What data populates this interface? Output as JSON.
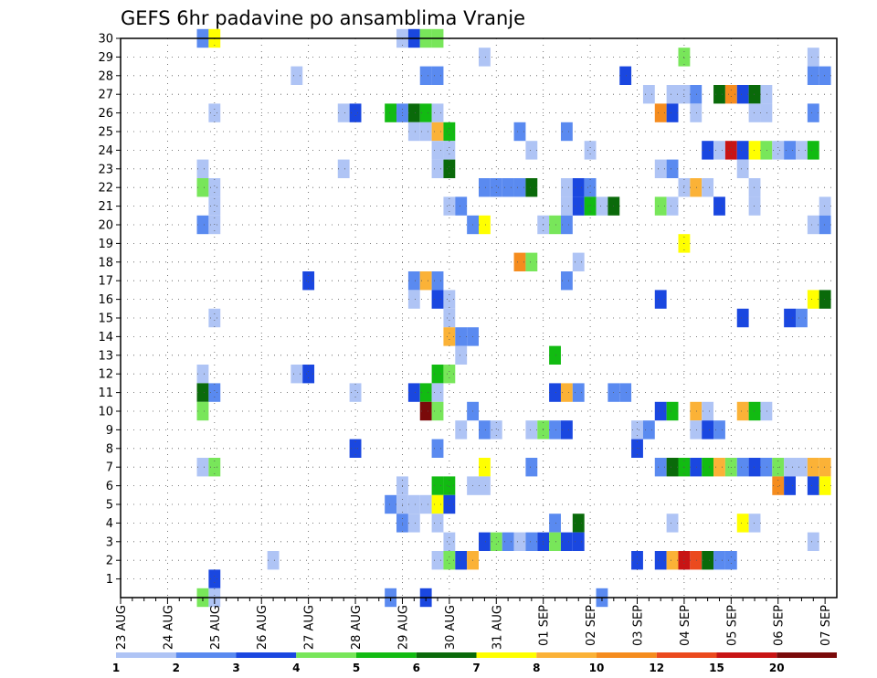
{
  "chart_data": {
    "type": "heatmap",
    "title": "GEFS 6hr padavine po ansamblima Vranje",
    "xlabel": "",
    "ylabel": "",
    "x_tick_labels": [
      "23 AUG",
      "24 AUG",
      "25 AUG",
      "26 AUG",
      "27 AUG",
      "28 AUG",
      "29 AUG",
      "30 AUG",
      "31 AUG",
      "01 SEP",
      "02 SEP",
      "03 SEP",
      "04 SEP",
      "05 SEP",
      "06 SEP",
      "07 SEP"
    ],
    "y_tick_labels": [
      "1",
      "2",
      "3",
      "4",
      "5",
      "6",
      "7",
      "8",
      "9",
      "10",
      "11",
      "12",
      "13",
      "14",
      "15",
      "16",
      "17",
      "18",
      "19",
      "20",
      "21",
      "22",
      "23",
      "24",
      "25",
      "26",
      "27",
      "28",
      "29",
      "30"
    ],
    "time_steps_6h": 61,
    "members_range": [
      0,
      30
    ],
    "grid": true,
    "legend_position": "bottom",
    "legend": {
      "labels": [
        "1",
        "2",
        "3",
        "4",
        "5",
        "6",
        "7",
        "8",
        "10",
        "12",
        "15",
        "20"
      ],
      "colors": [
        "#afc4f5",
        "#5a8af0",
        "#1a47e0",
        "#78e65a",
        "#12bb12",
        "#0a6a0a",
        "#ffff00",
        "#fbb237",
        "#f58c1e",
        "#eb4a1e",
        "#c81414",
        "#7a0a0a"
      ]
    },
    "class_colors": [
      "#afc4f5",
      "#5a8af0",
      "#1a47e0",
      "#78e65a",
      "#12bb12",
      "#0a6a0a",
      "#ffff00",
      "#fbb237",
      "#f58c1e",
      "#eb4a1e",
      "#c81414",
      "#7a0a0a"
    ],
    "cells": [
      [
        7,
        30,
        2
      ],
      [
        8,
        30,
        7
      ],
      [
        24,
        30,
        1
      ],
      [
        25,
        30,
        3
      ],
      [
        26,
        30,
        4
      ],
      [
        27,
        30,
        4
      ],
      [
        31,
        29,
        1
      ],
      [
        48,
        29,
        4
      ],
      [
        59,
        29,
        1
      ],
      [
        15,
        28,
        1
      ],
      [
        26,
        28,
        2
      ],
      [
        27,
        28,
        2
      ],
      [
        43,
        28,
        3
      ],
      [
        59,
        28,
        2
      ],
      [
        60,
        28,
        2
      ],
      [
        45,
        27,
        1
      ],
      [
        47,
        27,
        1
      ],
      [
        48,
        27,
        1
      ],
      [
        49,
        27,
        2
      ],
      [
        51,
        27,
        6
      ],
      [
        52,
        27,
        9
      ],
      [
        53,
        27,
        3
      ],
      [
        54,
        27,
        6
      ],
      [
        55,
        27,
        1
      ],
      [
        8,
        26,
        1
      ],
      [
        19,
        26,
        1
      ],
      [
        20,
        26,
        3
      ],
      [
        23,
        26,
        5
      ],
      [
        24,
        26,
        2
      ],
      [
        25,
        26,
        6
      ],
      [
        26,
        26,
        5
      ],
      [
        27,
        26,
        1
      ],
      [
        46,
        26,
        9
      ],
      [
        47,
        26,
        3
      ],
      [
        49,
        26,
        1
      ],
      [
        54,
        26,
        1
      ],
      [
        55,
        26,
        1
      ],
      [
        59,
        26,
        2
      ],
      [
        25,
        25,
        1
      ],
      [
        26,
        25,
        1
      ],
      [
        27,
        25,
        8
      ],
      [
        28,
        25,
        5
      ],
      [
        34,
        25,
        2
      ],
      [
        38,
        25,
        2
      ],
      [
        27,
        24,
        1
      ],
      [
        28,
        24,
        1
      ],
      [
        35,
        24,
        1
      ],
      [
        40,
        24,
        1
      ],
      [
        50,
        24,
        3
      ],
      [
        51,
        24,
        1
      ],
      [
        52,
        24,
        11
      ],
      [
        53,
        24,
        3
      ],
      [
        54,
        24,
        7
      ],
      [
        55,
        24,
        4
      ],
      [
        56,
        24,
        1
      ],
      [
        57,
        24,
        2
      ],
      [
        58,
        24,
        1
      ],
      [
        59,
        24,
        5
      ],
      [
        7,
        23,
        1
      ],
      [
        19,
        23,
        1
      ],
      [
        27,
        23,
        1
      ],
      [
        28,
        23,
        6
      ],
      [
        46,
        23,
        1
      ],
      [
        47,
        23,
        2
      ],
      [
        53,
        23,
        1
      ],
      [
        7,
        22,
        4
      ],
      [
        8,
        22,
        1
      ],
      [
        31,
        22,
        2
      ],
      [
        32,
        22,
        2
      ],
      [
        33,
        22,
        2
      ],
      [
        34,
        22,
        2
      ],
      [
        35,
        22,
        6
      ],
      [
        38,
        22,
        1
      ],
      [
        39,
        22,
        3
      ],
      [
        40,
        22,
        2
      ],
      [
        48,
        22,
        1
      ],
      [
        49,
        22,
        8
      ],
      [
        50,
        22,
        1
      ],
      [
        54,
        22,
        1
      ],
      [
        8,
        21,
        1
      ],
      [
        28,
        21,
        1
      ],
      [
        29,
        21,
        2
      ],
      [
        38,
        21,
        1
      ],
      [
        39,
        21,
        3
      ],
      [
        40,
        21,
        5
      ],
      [
        41,
        21,
        1
      ],
      [
        42,
        21,
        6
      ],
      [
        46,
        21,
        4
      ],
      [
        47,
        21,
        1
      ],
      [
        51,
        21,
        3
      ],
      [
        54,
        21,
        1
      ],
      [
        60,
        21,
        1
      ],
      [
        7,
        20,
        2
      ],
      [
        8,
        20,
        1
      ],
      [
        30,
        20,
        2
      ],
      [
        31,
        20,
        7
      ],
      [
        36,
        20,
        1
      ],
      [
        37,
        20,
        4
      ],
      [
        38,
        20,
        2
      ],
      [
        59,
        20,
        1
      ],
      [
        60,
        20,
        2
      ],
      [
        48,
        19,
        7
      ],
      [
        34,
        18,
        9
      ],
      [
        35,
        18,
        4
      ],
      [
        39,
        18,
        1
      ],
      [
        16,
        17,
        3
      ],
      [
        25,
        17,
        2
      ],
      [
        26,
        17,
        8
      ],
      [
        27,
        17,
        2
      ],
      [
        38,
        17,
        2
      ],
      [
        25,
        16,
        1
      ],
      [
        27,
        16,
        3
      ],
      [
        28,
        16,
        1
      ],
      [
        46,
        16,
        3
      ],
      [
        59,
        16,
        7
      ],
      [
        60,
        16,
        6
      ],
      [
        8,
        15,
        1
      ],
      [
        28,
        15,
        1
      ],
      [
        53,
        15,
        3
      ],
      [
        57,
        15,
        3
      ],
      [
        58,
        15,
        2
      ],
      [
        28,
        14,
        8
      ],
      [
        29,
        14,
        2
      ],
      [
        30,
        14,
        2
      ],
      [
        29,
        13,
        1
      ],
      [
        37,
        13,
        5
      ],
      [
        7,
        12,
        1
      ],
      [
        15,
        12,
        1
      ],
      [
        16,
        12,
        3
      ],
      [
        27,
        12,
        5
      ],
      [
        28,
        12,
        4
      ],
      [
        7,
        11,
        6
      ],
      [
        8,
        11,
        2
      ],
      [
        20,
        11,
        1
      ],
      [
        25,
        11,
        3
      ],
      [
        26,
        11,
        5
      ],
      [
        27,
        11,
        1
      ],
      [
        37,
        11,
        3
      ],
      [
        38,
        11,
        8
      ],
      [
        39,
        11,
        2
      ],
      [
        42,
        11,
        2
      ],
      [
        43,
        11,
        2
      ],
      [
        7,
        10,
        4
      ],
      [
        26,
        10,
        12
      ],
      [
        27,
        10,
        4
      ],
      [
        30,
        10,
        2
      ],
      [
        46,
        10,
        3
      ],
      [
        47,
        10,
        5
      ],
      [
        49,
        10,
        8
      ],
      [
        50,
        10,
        1
      ],
      [
        53,
        10,
        8
      ],
      [
        54,
        10,
        5
      ],
      [
        55,
        10,
        1
      ],
      [
        29,
        9,
        1
      ],
      [
        31,
        9,
        2
      ],
      [
        32,
        9,
        1
      ],
      [
        35,
        9,
        1
      ],
      [
        36,
        9,
        4
      ],
      [
        37,
        9,
        2
      ],
      [
        38,
        9,
        3
      ],
      [
        44,
        9,
        1
      ],
      [
        45,
        9,
        2
      ],
      [
        49,
        9,
        1
      ],
      [
        50,
        9,
        3
      ],
      [
        51,
        9,
        2
      ],
      [
        20,
        8,
        3
      ],
      [
        27,
        8,
        2
      ],
      [
        44,
        8,
        3
      ],
      [
        7,
        7,
        1
      ],
      [
        8,
        7,
        4
      ],
      [
        31,
        7,
        7
      ],
      [
        35,
        7,
        2
      ],
      [
        46,
        7,
        2
      ],
      [
        47,
        7,
        6
      ],
      [
        48,
        7,
        5
      ],
      [
        49,
        7,
        3
      ],
      [
        50,
        7,
        5
      ],
      [
        51,
        7,
        8
      ],
      [
        52,
        7,
        4
      ],
      [
        53,
        7,
        2
      ],
      [
        54,
        7,
        3
      ],
      [
        55,
        7,
        2
      ],
      [
        56,
        7,
        4
      ],
      [
        57,
        7,
        1
      ],
      [
        58,
        7,
        1
      ],
      [
        59,
        7,
        8
      ],
      [
        60,
        7,
        8
      ],
      [
        24,
        6,
        1
      ],
      [
        27,
        6,
        5
      ],
      [
        28,
        6,
        5
      ],
      [
        30,
        6,
        1
      ],
      [
        31,
        6,
        1
      ],
      [
        56,
        6,
        9
      ],
      [
        57,
        6,
        3
      ],
      [
        59,
        6,
        3
      ],
      [
        60,
        6,
        7
      ],
      [
        23,
        5,
        2
      ],
      [
        24,
        5,
        1
      ],
      [
        25,
        5,
        1
      ],
      [
        26,
        5,
        1
      ],
      [
        27,
        5,
        7
      ],
      [
        28,
        5,
        3
      ],
      [
        24,
        4,
        2
      ],
      [
        25,
        4,
        1
      ],
      [
        27,
        4,
        1
      ],
      [
        37,
        4,
        2
      ],
      [
        39,
        4,
        6
      ],
      [
        47,
        4,
        1
      ],
      [
        53,
        4,
        7
      ],
      [
        54,
        4,
        1
      ],
      [
        28,
        3,
        1
      ],
      [
        31,
        3,
        3
      ],
      [
        32,
        3,
        4
      ],
      [
        33,
        3,
        2
      ],
      [
        34,
        3,
        1
      ],
      [
        35,
        3,
        2
      ],
      [
        36,
        3,
        3
      ],
      [
        37,
        3,
        4
      ],
      [
        38,
        3,
        3
      ],
      [
        39,
        3,
        3
      ],
      [
        59,
        3,
        1
      ],
      [
        13,
        2,
        1
      ],
      [
        27,
        2,
        1
      ],
      [
        28,
        2,
        4
      ],
      [
        29,
        2,
        3
      ],
      [
        30,
        2,
        8
      ],
      [
        44,
        2,
        3
      ],
      [
        46,
        2,
        3
      ],
      [
        47,
        2,
        8
      ],
      [
        48,
        2,
        11
      ],
      [
        49,
        2,
        10
      ],
      [
        50,
        2,
        6
      ],
      [
        51,
        2,
        2
      ],
      [
        52,
        2,
        2
      ],
      [
        8,
        1,
        3
      ],
      [
        7,
        0,
        4
      ],
      [
        8,
        0,
        1
      ],
      [
        23,
        0,
        2
      ],
      [
        26,
        0,
        3
      ],
      [
        41,
        0,
        2
      ]
    ]
  }
}
